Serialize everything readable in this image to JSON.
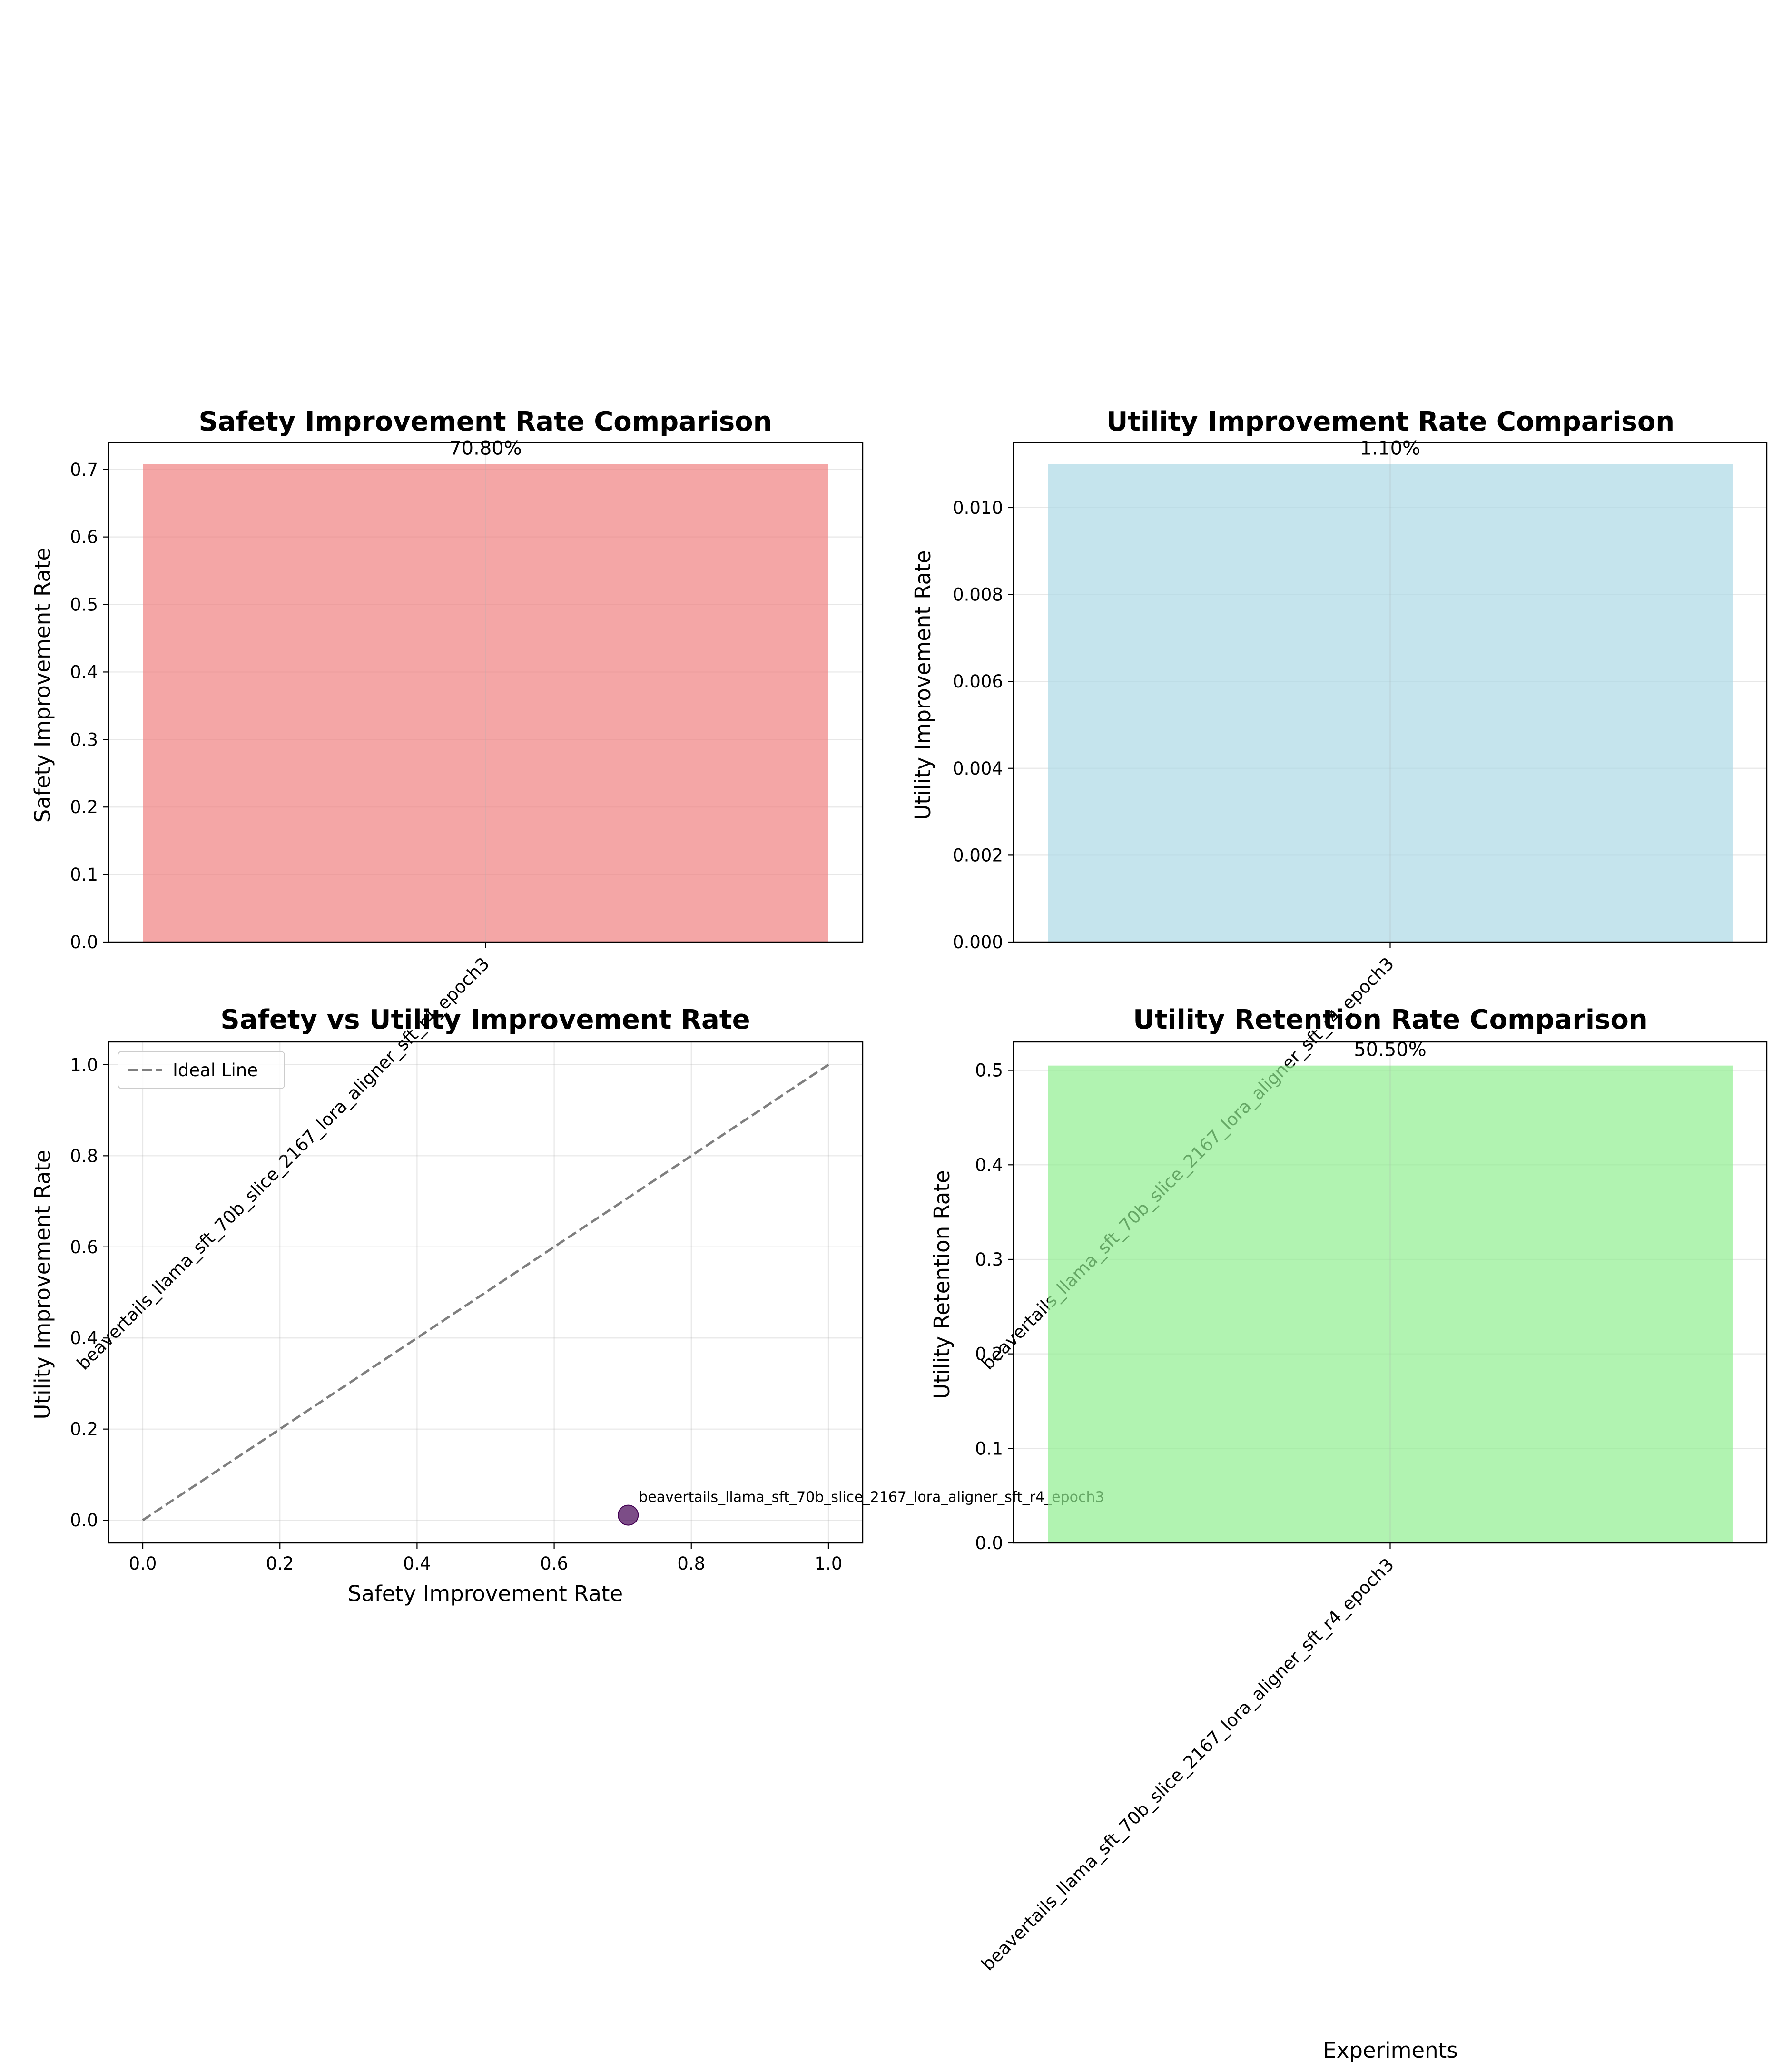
{
  "chart_data": [
    {
      "type": "bar",
      "title": "Safety Improvement Rate Comparison",
      "ylabel": "Safety Improvement Rate",
      "xlabel": "",
      "categories": [
        "beavertails_llama_sft_70b_slice_2167_lora_aligner_sft_r4_epoch3"
      ],
      "values": [
        0.708
      ],
      "value_labels": [
        "70.80%"
      ],
      "ylim": [
        0,
        0.74
      ],
      "yticks": [
        "0.0",
        "0.1",
        "0.2",
        "0.3",
        "0.4",
        "0.5",
        "0.6",
        "0.7"
      ],
      "color": "#f08080",
      "grid": true
    },
    {
      "type": "bar",
      "title": "Utility Improvement Rate Comparison",
      "ylabel": "Utility Improvement Rate",
      "xlabel": "",
      "categories": [
        "beavertails_llama_sft_70b_slice_2167_lora_aligner_sft_r4_epoch3"
      ],
      "values": [
        0.011
      ],
      "value_labels": [
        "1.10%"
      ],
      "ylim": [
        0,
        0.0115
      ],
      "yticks": [
        "0.000",
        "0.002",
        "0.004",
        "0.006",
        "0.008",
        "0.010"
      ],
      "color": "#add8e6",
      "grid": true
    },
    {
      "type": "scatter",
      "title": "Safety vs Utility Improvement Rate",
      "xlabel": "Safety Improvement Rate",
      "ylabel": "Utility Improvement Rate",
      "points": [
        {
          "x": 0.708,
          "y": 0.011,
          "label": "beavertails_llama_sft_70b_slice_2167_lora_aligner_sft_r4_epoch3"
        }
      ],
      "ideal_line": {
        "name": "Ideal Line",
        "x": [
          0,
          1
        ],
        "y": [
          0,
          1
        ]
      },
      "xlim": [
        -0.05,
        1.05
      ],
      "ylim": [
        -0.05,
        1.05
      ],
      "xticks": [
        "0.0",
        "0.2",
        "0.4",
        "0.6",
        "0.8",
        "1.0"
      ],
      "yticks": [
        "0.0",
        "0.2",
        "0.4",
        "0.6",
        "0.8",
        "1.0"
      ],
      "legend": {
        "position": "upper-left",
        "entries": [
          "Ideal Line"
        ]
      },
      "point_color": "#440154",
      "grid": true
    },
    {
      "type": "bar",
      "title": "Utility Retention Rate Comparison",
      "ylabel": "Utility Retention Rate",
      "xlabel": "Experiments",
      "categories": [
        "beavertails_llama_sft_70b_slice_2167_lora_aligner_sft_r4_epoch3"
      ],
      "values": [
        0.505
      ],
      "value_labels": [
        "50.50%"
      ],
      "ylim": [
        0,
        0.53
      ],
      "yticks": [
        "0.0",
        "0.1",
        "0.2",
        "0.3",
        "0.4",
        "0.5"
      ],
      "color": "#90ee90",
      "grid": true
    }
  ]
}
